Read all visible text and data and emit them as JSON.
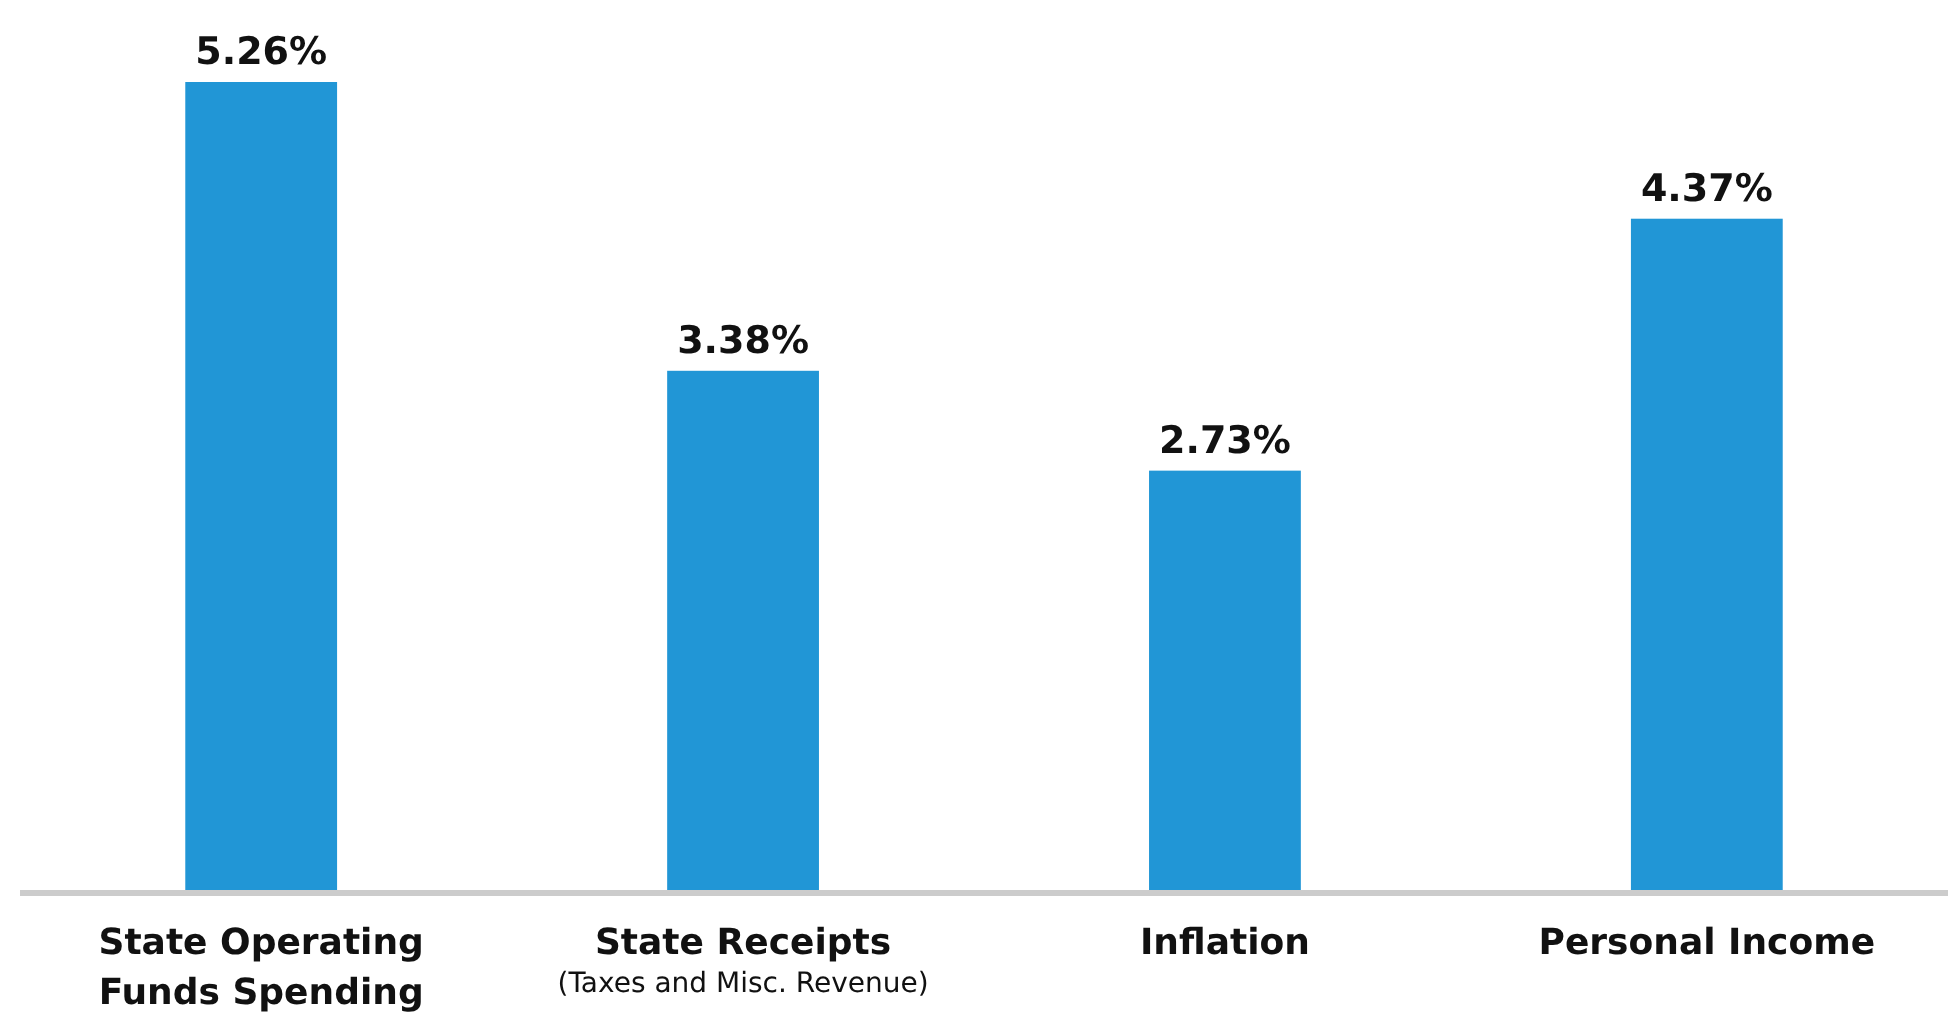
{
  "chart_data": {
    "type": "bar",
    "categories": [
      "State Operating\nFunds Spending",
      "State Receipts\n(Taxes and Misc. Revenue)",
      "Inflation",
      "Personal Income"
    ],
    "values": [
      5.26,
      3.38,
      2.73,
      4.37
    ],
    "value_labels": [
      "5.26%",
      "3.38%",
      "2.73%",
      "4.37%"
    ],
    "color": "#2196d6"
  }
}
